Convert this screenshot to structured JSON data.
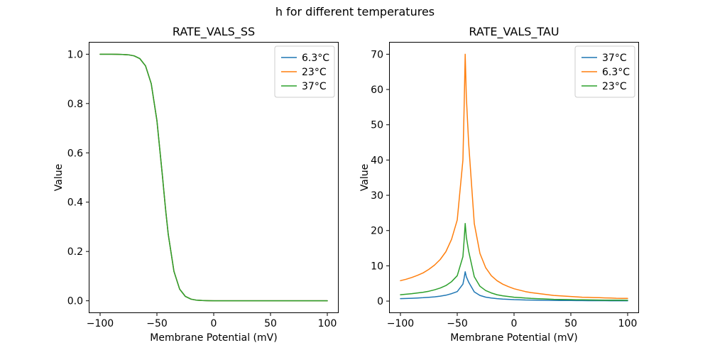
{
  "figure": {
    "title": "h for different temperatures",
    "background": "#ffffff"
  },
  "palette": {
    "blue": "#1f77b4",
    "orange": "#ff7f0e",
    "green": "#2ca02c"
  },
  "chart_data": [
    {
      "id": "rate-vals-ss",
      "type": "line",
      "title": "RATE_VALS_SS",
      "xlabel": "Membrane Potential (mV)",
      "ylabel": "Value",
      "xlim": [
        -110,
        110
      ],
      "ylim": [
        -0.05,
        1.05
      ],
      "xticks": [
        -100,
        -50,
        0,
        50,
        100
      ],
      "xtick_labels": [
        "−100",
        "−50",
        "0",
        "50",
        "100"
      ],
      "yticks": [
        0.0,
        0.2,
        0.4,
        0.6,
        0.8,
        1.0
      ],
      "ytick_labels": [
        "0.0",
        "0.2",
        "0.4",
        "0.6",
        "0.8",
        "1.0"
      ],
      "legend_loc": "upper right",
      "grid": false,
      "x": [
        -100,
        -95,
        -90,
        -85,
        -80,
        -75,
        -70,
        -65,
        -60,
        -55,
        -50,
        -45,
        -44,
        -43,
        -42,
        -40,
        -35,
        -30,
        -25,
        -20,
        -15,
        -10,
        -5,
        0,
        5,
        10,
        15,
        20,
        25,
        30,
        35,
        40,
        45,
        50,
        55,
        60,
        65,
        70,
        75,
        80,
        85,
        90,
        95,
        100
      ],
      "series": [
        {
          "name": "6.3°C",
          "color": "#1f77b4",
          "values": [
            1.0,
            1.0,
            0.9999,
            0.9997,
            0.9991,
            0.9975,
            0.9933,
            0.982,
            0.9526,
            0.8808,
            0.7311,
            0.5,
            0.4502,
            0.4013,
            0.3543,
            0.2689,
            0.1192,
            0.0474,
            0.018,
            0.0067,
            0.0025,
            0.0009,
            0.0003,
            0.0001,
            0.0,
            0.0,
            0.0,
            0.0,
            0.0,
            0.0,
            0.0,
            0.0,
            0.0,
            0.0,
            0.0,
            0.0,
            0.0,
            0.0,
            0.0,
            0.0,
            0.0,
            0.0,
            0.0,
            0.0
          ]
        },
        {
          "name": "23°C",
          "color": "#ff7f0e",
          "values": [
            1.0,
            1.0,
            0.9999,
            0.9997,
            0.9991,
            0.9975,
            0.9933,
            0.982,
            0.9526,
            0.8808,
            0.7311,
            0.5,
            0.4502,
            0.4013,
            0.3543,
            0.2689,
            0.1192,
            0.0474,
            0.018,
            0.0067,
            0.0025,
            0.0009,
            0.0003,
            0.0001,
            0.0,
            0.0,
            0.0,
            0.0,
            0.0,
            0.0,
            0.0,
            0.0,
            0.0,
            0.0,
            0.0,
            0.0,
            0.0,
            0.0,
            0.0,
            0.0,
            0.0,
            0.0,
            0.0,
            0.0
          ]
        },
        {
          "name": "37°C",
          "color": "#2ca02c",
          "values": [
            1.0,
            1.0,
            0.9999,
            0.9997,
            0.9991,
            0.9975,
            0.9933,
            0.982,
            0.9526,
            0.8808,
            0.7311,
            0.5,
            0.4502,
            0.4013,
            0.3543,
            0.2689,
            0.1192,
            0.0474,
            0.018,
            0.0067,
            0.0025,
            0.0009,
            0.0003,
            0.0001,
            0.0,
            0.0,
            0.0,
            0.0,
            0.0,
            0.0,
            0.0,
            0.0,
            0.0,
            0.0,
            0.0,
            0.0,
            0.0,
            0.0,
            0.0,
            0.0,
            0.0,
            0.0,
            0.0,
            0.0
          ]
        }
      ]
    },
    {
      "id": "rate-vals-tau",
      "type": "line",
      "title": "RATE_VALS_TAU",
      "xlabel": "Membrane Potential (mV)",
      "ylabel": "Value",
      "xlim": [
        -110,
        110
      ],
      "ylim": [
        -3.41,
        73.5
      ],
      "xticks": [
        -100,
        -50,
        0,
        50,
        100
      ],
      "xtick_labels": [
        "−100",
        "−50",
        "0",
        "50",
        "100"
      ],
      "yticks": [
        0,
        10,
        20,
        30,
        40,
        50,
        60,
        70
      ],
      "ytick_labels": [
        "0",
        "10",
        "20",
        "30",
        "40",
        "50",
        "60",
        "70"
      ],
      "legend_loc": "upper right",
      "grid": false,
      "x": [
        -100,
        -95,
        -90,
        -85,
        -80,
        -75,
        -70,
        -65,
        -60,
        -55,
        -50,
        -45,
        -44,
        -43,
        -42,
        -40,
        -35,
        -30,
        -25,
        -20,
        -15,
        -10,
        -5,
        0,
        5,
        10,
        15,
        20,
        25,
        30,
        35,
        40,
        45,
        50,
        55,
        60,
        65,
        70,
        75,
        80,
        85,
        90,
        95,
        100
      ],
      "series": [
        {
          "name": "37°C",
          "color": "#1f77b4",
          "values": [
            0.7,
            0.74,
            0.8,
            0.87,
            0.95,
            1.07,
            1.2,
            1.4,
            1.67,
            2.1,
            2.7,
            4.8,
            6.4,
            8.3,
            6.9,
            5.4,
            2.6,
            1.6,
            1.13,
            0.86,
            0.69,
            0.57,
            0.49,
            0.42,
            0.37,
            0.32,
            0.29,
            0.26,
            0.24,
            0.21,
            0.19,
            0.18,
            0.17,
            0.15,
            0.14,
            0.13,
            0.12,
            0.12,
            0.11,
            0.11,
            0.1,
            0.1,
            0.09,
            0.09
          ]
        },
        {
          "name": "6.3°C",
          "color": "#ff7f0e",
          "values": [
            5.8,
            6.2,
            6.7,
            7.3,
            8.0,
            9.0,
            10.2,
            11.8,
            14.0,
            17.5,
            23,
            40,
            54,
            70,
            58,
            45,
            22,
            13.5,
            9.5,
            7.2,
            5.8,
            4.8,
            4.1,
            3.5,
            3.1,
            2.7,
            2.4,
            2.2,
            2.0,
            1.8,
            1.6,
            1.5,
            1.4,
            1.3,
            1.2,
            1.1,
            1.05,
            1.0,
            0.95,
            0.9,
            0.85,
            0.8,
            0.78,
            0.75
          ]
        },
        {
          "name": "23°C",
          "color": "#2ca02c",
          "values": [
            1.8,
            1.95,
            2.1,
            2.3,
            2.5,
            2.8,
            3.2,
            3.7,
            4.4,
            5.5,
            7.2,
            12.6,
            17.0,
            22.0,
            18.2,
            14.2,
            6.9,
            4.2,
            3.0,
            2.3,
            1.8,
            1.5,
            1.3,
            1.1,
            1.0,
            0.85,
            0.75,
            0.7,
            0.63,
            0.57,
            0.5,
            0.47,
            0.44,
            0.41,
            0.38,
            0.35,
            0.33,
            0.31,
            0.3,
            0.28,
            0.27,
            0.25,
            0.25,
            0.24
          ]
        }
      ]
    }
  ]
}
